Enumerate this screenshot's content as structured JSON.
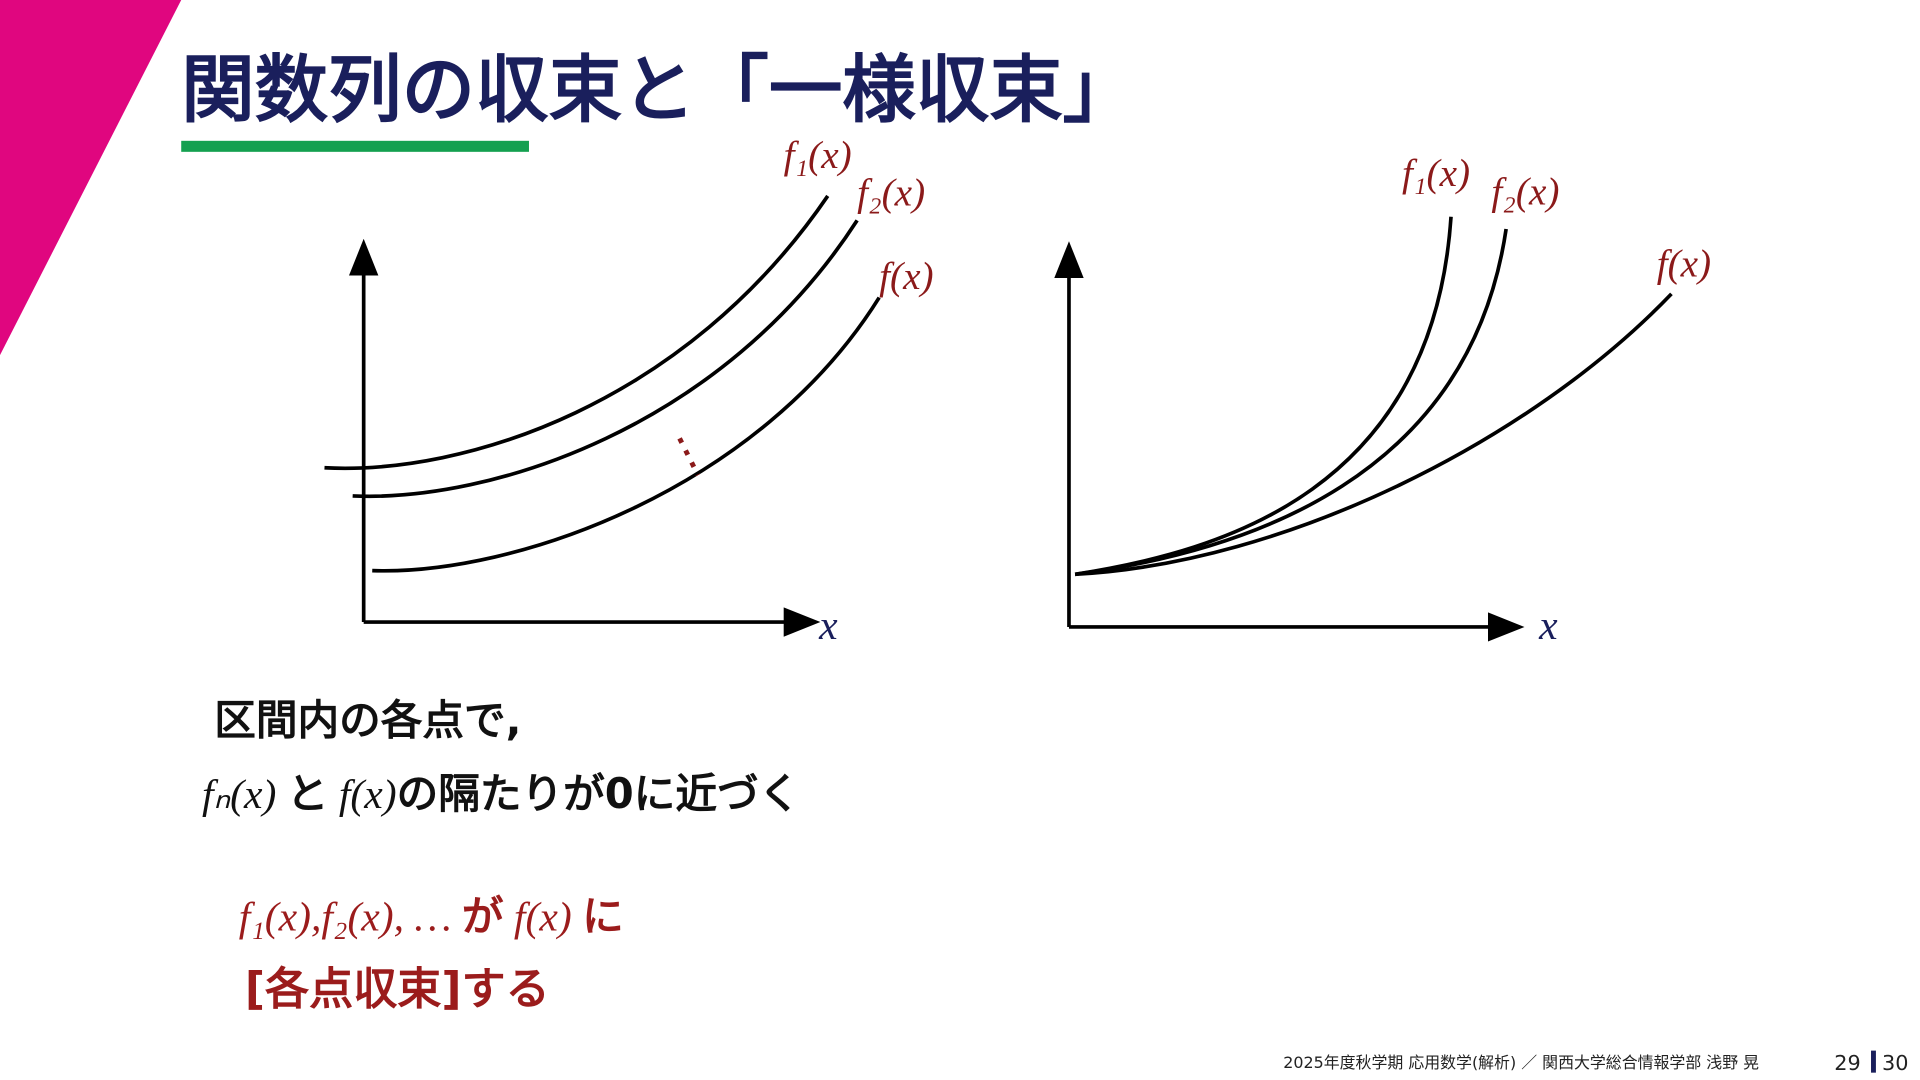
{
  "header": {
    "title": "関数列の収束と「一様収束」"
  },
  "left_graph": {
    "labels": [
      "f₁(x)",
      "f₂(x)",
      "f(x)"
    ],
    "x_label": "x"
  },
  "right_graph": {
    "labels": [
      "f₁(x)",
      "f₂(x)",
      "f(x)"
    ],
    "x_label": "x"
  },
  "body": {
    "line1": "区間内の各点で,",
    "line2": [
      "fₙ(x)",
      "と",
      "f(x)",
      "の隔たりが0に近づく"
    ]
  },
  "conclusion": {
    "line1": [
      "f₁(x),f₂(x), …",
      "が",
      "f(x)",
      "に"
    ],
    "line2": "[各点収束]する"
  },
  "footer": {
    "text": "2025年度秋学期  応用数学(解析) ／  関西大学総合情報学部  浅野  晃",
    "page": "29",
    "total": "30"
  }
}
